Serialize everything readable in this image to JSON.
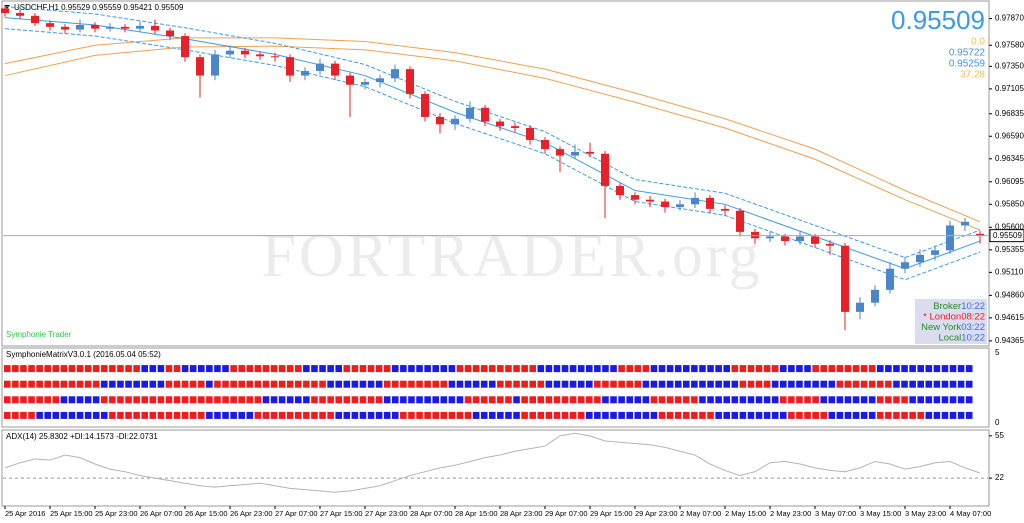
{
  "chart_data": [
    {
      "type": "candlestick",
      "title": "USDCHF,H1  0.95529 0.95559 0.95421 0.95509",
      "watermark": "FORTRADER.org",
      "footer": "Symphonie Trader",
      "last_price": 0.95509,
      "info_lines": [
        {
          "text": "0.0",
          "color": "#f2c04a"
        },
        {
          "text": "0.95722",
          "color": "#4a8fe0"
        },
        {
          "text": "0.95259",
          "color": "#4a8fe0"
        },
        {
          "text": "37.28",
          "color": "#f2c04a"
        }
      ],
      "clocks": [
        {
          "name": "Broker",
          "time": "10:22",
          "name_color": "#228b22",
          "time_color": "#3a6fd8"
        },
        {
          "name": "* London",
          "time": "08:22",
          "name_color": "#e82020",
          "time_color": "#e82020"
        },
        {
          "name": "New York",
          "time": "03:22",
          "name_color": "#228b22",
          "time_color": "#3a6fd8"
        },
        {
          "name": "Local",
          "time": "10:22",
          "name_color": "#228b22",
          "time_color": "#3a6fd8"
        }
      ],
      "colors": {
        "bull": "#4a86c8",
        "bear": "#e8202a"
      },
      "ylim": [
        0.9432,
        0.9805
      ],
      "yticks": [
        {
          "value": 0.9787,
          "label": "0.97870"
        },
        {
          "value": 0.9758,
          "label": "0.97580"
        },
        {
          "value": 0.9735,
          "label": "0.97350"
        },
        0.97105,
        0.96835,
        {
          "value": 0.9659,
          "label": "0.96590"
        },
        0.96345,
        0.96095,
        {
          "value": 0.9585,
          "label": "0.95850"
        },
        {
          "value": 0.956,
          "label": "0.95600"
        },
        0.95355,
        {
          "value": 0.9511,
          "label": "0.95110"
        },
        {
          "value": 0.9486,
          "label": "0.94860"
        },
        0.94615,
        0.94365
      ],
      "x_labels": [
        "25 Apr 2016",
        "25 Apr 15:00",
        "25 Apr 23:00",
        "26 Apr 07:00",
        "26 Apr 15:00",
        "26 Apr 23:00",
        "27 Apr 07:00",
        "27 Apr 15:00",
        "27 Apr 23:00",
        "28 Apr 07:00",
        "28 Apr 15:00",
        "28 Apr 23:00",
        "29 Apr 07:00",
        "29 Apr 15:00",
        "29 Apr 23:00",
        "2 May 07:00",
        "2 May 15:00",
        "2 May 23:00",
        "3 May 07:00",
        "3 May 15:00",
        "3 May 23:00",
        "4 May 07:00"
      ],
      "ohlc": [
        [
          0.9798,
          0.9802,
          0.9789,
          0.9793
        ],
        [
          0.9793,
          0.9797,
          0.9786,
          0.979
        ],
        [
          0.979,
          0.9793,
          0.9779,
          0.9782
        ],
        [
          0.9782,
          0.9785,
          0.9774,
          0.9778
        ],
        [
          0.9778,
          0.9781,
          0.9771,
          0.9775
        ],
        [
          0.9775,
          0.9786,
          0.9772,
          0.978
        ],
        [
          0.978,
          0.9783,
          0.9772,
          0.9776
        ],
        [
          0.9776,
          0.9782,
          0.9773,
          0.9778
        ],
        [
          0.9778,
          0.9781,
          0.9772,
          0.9776
        ],
        [
          0.9776,
          0.9784,
          0.9773,
          0.9779
        ],
        [
          0.9779,
          0.9786,
          0.977,
          0.9774
        ],
        [
          0.9774,
          0.9777,
          0.9764,
          0.9768
        ],
        [
          0.9768,
          0.9771,
          0.974,
          0.9745
        ],
        [
          0.9745,
          0.9748,
          0.9701,
          0.9725
        ],
        [
          0.9725,
          0.9753,
          0.972,
          0.9748
        ],
        [
          0.9748,
          0.9758,
          0.9744,
          0.9752
        ],
        [
          0.9752,
          0.9755,
          0.9744,
          0.9748
        ],
        [
          0.9748,
          0.9751,
          0.9742,
          0.9746
        ],
        [
          0.9746,
          0.975,
          0.974,
          0.9745
        ],
        [
          0.9745,
          0.9748,
          0.9718,
          0.9725
        ],
        [
          0.9725,
          0.9734,
          0.972,
          0.973
        ],
        [
          0.973,
          0.9743,
          0.9726,
          0.9738
        ],
        [
          0.9738,
          0.9741,
          0.972,
          0.9725
        ],
        [
          0.9725,
          0.9728,
          0.968,
          0.9715
        ],
        [
          0.9715,
          0.9722,
          0.971,
          0.9718
        ],
        [
          0.9718,
          0.9726,
          0.9712,
          0.9722
        ],
        [
          0.9722,
          0.9737,
          0.9718,
          0.9732
        ],
        [
          0.9732,
          0.9735,
          0.97,
          0.9705
        ],
        [
          0.9705,
          0.9708,
          0.9675,
          0.968
        ],
        [
          0.968,
          0.9684,
          0.9662,
          0.9672
        ],
        [
          0.9672,
          0.9682,
          0.9666,
          0.9678
        ],
        [
          0.9678,
          0.9697,
          0.9674,
          0.969
        ],
        [
          0.969,
          0.9693,
          0.967,
          0.9675
        ],
        [
          0.9675,
          0.9678,
          0.9665,
          0.967
        ],
        [
          0.967,
          0.9674,
          0.9663,
          0.9668
        ],
        [
          0.9668,
          0.9671,
          0.965,
          0.9655
        ],
        [
          0.9655,
          0.9658,
          0.964,
          0.9645
        ],
        [
          0.9645,
          0.9648,
          0.962,
          0.9638
        ],
        [
          0.9638,
          0.965,
          0.9634,
          0.9642
        ],
        [
          0.9642,
          0.9652,
          0.9636,
          0.964
        ],
        [
          0.964,
          0.9643,
          0.957,
          0.9605
        ],
        [
          0.9605,
          0.9608,
          0.959,
          0.9595
        ],
        [
          0.9595,
          0.9598,
          0.9585,
          0.959
        ],
        [
          0.959,
          0.9594,
          0.9582,
          0.9588
        ],
        [
          0.9588,
          0.9591,
          0.9576,
          0.9582
        ],
        [
          0.9582,
          0.959,
          0.9578,
          0.9585
        ],
        [
          0.9585,
          0.9598,
          0.9581,
          0.9592
        ],
        [
          0.9592,
          0.9595,
          0.9575,
          0.958
        ],
        [
          0.958,
          0.9584,
          0.9572,
          0.9578
        ],
        [
          0.9578,
          0.9581,
          0.955,
          0.9555
        ],
        [
          0.9555,
          0.9558,
          0.9542,
          0.9548
        ],
        [
          0.9548,
          0.9555,
          0.9544,
          0.955
        ],
        [
          0.955,
          0.9553,
          0.954,
          0.9545
        ],
        [
          0.9545,
          0.9556,
          0.9541,
          0.955
        ],
        [
          0.955,
          0.9553,
          0.9538,
          0.9542
        ],
        [
          0.9542,
          0.9546,
          0.953,
          0.954
        ],
        [
          0.954,
          0.9543,
          0.9448,
          0.9468
        ],
        [
          0.9468,
          0.9484,
          0.946,
          0.9478
        ],
        [
          0.9478,
          0.9497,
          0.9474,
          0.9492
        ],
        [
          0.9492,
          0.9522,
          0.9488,
          0.9515
        ],
        [
          0.9515,
          0.9528,
          0.951,
          0.9522
        ],
        [
          0.9522,
          0.9536,
          0.9517,
          0.953
        ],
        [
          0.953,
          0.954,
          0.9524,
          0.9535
        ],
        [
          0.9535,
          0.9567,
          0.9531,
          0.9562
        ],
        [
          0.9562,
          0.957,
          0.9556,
          0.9566
        ],
        [
          0.95529,
          0.95559,
          0.95421,
          0.95509
        ]
      ],
      "series": [
        {
          "color": "#f0a050",
          "dashed": false,
          "x": [
            0,
            6,
            12,
            18,
            24,
            30,
            36,
            42,
            48,
            54,
            60,
            65
          ],
          "values": [
            0.9738,
            0.9758,
            0.9766,
            0.9766,
            0.9762,
            0.975,
            0.9732,
            0.9706,
            0.9678,
            0.9645,
            0.96,
            0.9566
          ]
        },
        {
          "color": "#f0a050",
          "dashed": false,
          "x": [
            0,
            6,
            12,
            18,
            24,
            30,
            36,
            42,
            48,
            54,
            60,
            65
          ],
          "values": [
            0.9725,
            0.9747,
            0.9756,
            0.9757,
            0.9753,
            0.9741,
            0.9722,
            0.9696,
            0.9668,
            0.9634,
            0.959,
            0.9557
          ]
        },
        {
          "color": "#3a9ae8",
          "dashed": false,
          "x": [
            0,
            6,
            12,
            18,
            24,
            30,
            36,
            42,
            48,
            54,
            60,
            65
          ],
          "values": [
            0.9788,
            0.978,
            0.9765,
            0.9748,
            0.9725,
            0.9685,
            0.9652,
            0.96,
            0.9585,
            0.955,
            0.9515,
            0.9545
          ]
        },
        {
          "color": "#3a9ae8",
          "dashed": true,
          "x": [
            0,
            6,
            12,
            18,
            24,
            30,
            36,
            42,
            48,
            54,
            60,
            65
          ],
          "values": [
            0.98,
            0.9792,
            0.9777,
            0.976,
            0.9737,
            0.9697,
            0.9664,
            0.9612,
            0.9597,
            0.9562,
            0.9527,
            0.9557
          ]
        },
        {
          "color": "#3a9ae8",
          "dashed": true,
          "x": [
            0,
            6,
            12,
            18,
            24,
            30,
            36,
            42,
            48,
            54,
            60,
            65
          ],
          "values": [
            0.9776,
            0.9768,
            0.9753,
            0.9736,
            0.9713,
            0.9673,
            0.964,
            0.9588,
            0.9573,
            0.9538,
            0.9503,
            0.9533
          ]
        }
      ]
    },
    {
      "type": "matrix",
      "title": "SymphonieMatrixV3.0.1 (2016.05.04 05:52)",
      "colors": {
        "positive": "#1a1ae6",
        "negative": "#f01c1c"
      },
      "yticks": [
        5,
        0
      ],
      "rows": [
        {
          "values": [
            -17,
            3,
            -2,
            6,
            -9,
            5,
            -6,
            8,
            -10,
            10,
            -4,
            10,
            -6,
            4,
            -8,
            12
          ]
        },
        {
          "values": [
            -12,
            8,
            -5,
            1,
            -14,
            7,
            -8,
            6,
            -6,
            6,
            -6,
            12,
            -4,
            8,
            -7,
            10
          ]
        },
        {
          "values": [
            -7,
            5,
            -20,
            6,
            -9,
            10,
            -6,
            1,
            -10,
            6,
            -6,
            10,
            -5,
            7,
            -4,
            8
          ]
        },
        {
          "values": [
            -4,
            9,
            -12,
            6,
            -10,
            8,
            -9,
            6,
            -8,
            9,
            -7,
            9,
            -5,
            6,
            -6,
            6
          ]
        }
      ]
    },
    {
      "type": "line",
      "title": "ADX(14) 25.8302 +DI:14.1573 -DI:22.0731",
      "color": "#b4b4b4",
      "ylim": [
        1,
        58
      ],
      "yticks": [
        55,
        22
      ],
      "levels": [
        22
      ],
      "values": [
        30,
        34,
        37,
        36,
        40,
        38,
        33,
        29,
        27,
        24,
        22,
        20,
        18,
        16,
        15,
        16,
        17,
        18,
        16,
        14,
        13,
        12,
        11,
        12,
        14,
        16,
        20,
        24,
        27,
        30,
        32,
        35,
        38,
        40,
        43,
        45,
        47,
        55,
        57,
        55,
        51,
        50,
        49,
        48,
        46,
        43,
        40,
        33,
        28,
        24,
        27,
        34,
        35,
        33,
        30,
        28,
        27,
        30,
        35,
        33,
        29,
        31,
        34,
        35,
        30,
        26
      ]
    }
  ]
}
